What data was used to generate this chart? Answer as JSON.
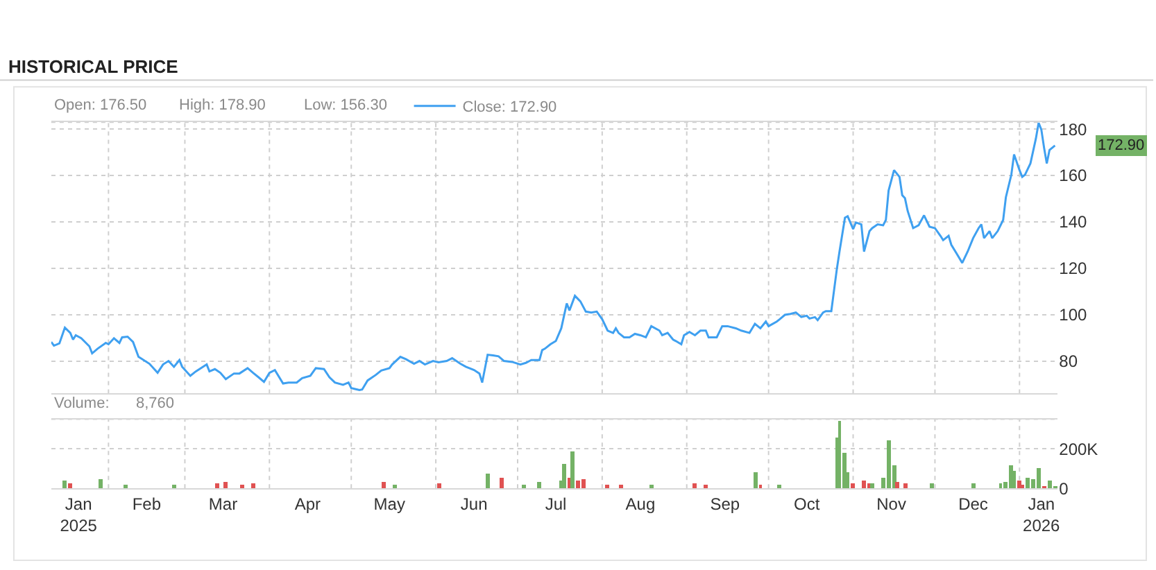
{
  "chart_data": [
    {
      "type": "line",
      "title": "HISTORICAL PRICE",
      "annotations": [
        "Open: 176.50",
        "High: 178.90",
        "Low: 156.30",
        "172.90"
      ],
      "x": [
        "2025-01-11",
        "2025-01-12",
        "2025-01-14",
        "2025-01-16",
        "2025-01-18",
        "2025-01-19",
        "2025-01-20",
        "2025-01-22",
        "2025-01-25",
        "2025-01-26",
        "2025-01-28",
        "2025-01-31",
        "2025-02-01",
        "2025-02-03",
        "2025-02-05",
        "2025-02-06",
        "2025-02-08",
        "2025-02-10",
        "2025-02-12",
        "2025-02-16",
        "2025-02-19",
        "2025-02-21",
        "2025-02-23",
        "2025-02-25",
        "2025-02-27",
        "2025-02-28",
        "2025-03-03",
        "2025-03-05",
        "2025-03-09",
        "2025-03-10",
        "2025-03-12",
        "2025-03-14",
        "2025-03-16",
        "2025-03-19",
        "2025-03-21",
        "2025-03-24",
        "2025-03-26",
        "2025-03-28",
        "2025-03-30",
        "2025-04-01",
        "2025-04-03",
        "2025-04-06",
        "2025-04-08",
        "2025-04-11",
        "2025-04-13",
        "2025-04-16",
        "2025-04-18",
        "2025-04-21",
        "2025-04-23",
        "2025-04-25",
        "2025-04-28",
        "2025-04-30",
        "2025-05-01",
        "2025-05-04",
        "2025-05-05",
        "2025-05-07",
        "2025-05-10",
        "2025-05-12",
        "2025-05-15",
        "2025-05-16",
        "2025-05-19",
        "2025-05-21",
        "2025-05-24",
        "2025-05-26",
        "2025-05-28",
        "2025-05-31",
        "2025-06-02",
        "2025-06-05",
        "2025-06-07",
        "2025-06-10",
        "2025-06-12",
        "2025-06-15",
        "2025-06-17",
        "2025-06-18",
        "2025-06-20",
        "2025-06-22",
        "2025-06-24",
        "2025-06-26",
        "2025-06-29",
        "2025-07-02",
        "2025-07-04",
        "2025-07-06",
        "2025-07-09",
        "2025-07-10",
        "2025-07-11",
        "2025-07-13",
        "2025-07-15",
        "2025-07-17",
        "2025-07-19",
        "2025-07-20",
        "2025-07-22",
        "2025-07-24",
        "2025-07-26",
        "2025-07-28",
        "2025-07-30",
        "2025-08-01",
        "2025-08-03",
        "2025-08-05",
        "2025-08-06",
        "2025-08-07",
        "2025-08-09",
        "2025-08-11",
        "2025-08-13",
        "2025-08-15",
        "2025-08-17",
        "2025-08-19",
        "2025-08-22",
        "2025-08-23",
        "2025-08-25",
        "2025-08-27",
        "2025-08-28",
        "2025-08-30",
        "2025-08-31",
        "2025-09-02",
        "2025-09-04",
        "2025-09-06",
        "2025-09-08",
        "2025-09-09",
        "2025-09-12",
        "2025-09-14",
        "2025-09-16",
        "2025-09-19",
        "2025-09-21",
        "2025-09-24",
        "2025-09-26",
        "2025-09-28",
        "2025-09-30",
        "2025-10-01",
        "2025-10-04",
        "2025-10-05",
        "2025-10-07",
        "2025-10-09",
        "2025-10-11",
        "2025-10-13",
        "2025-10-15",
        "2025-10-16",
        "2025-10-18",
        "2025-10-19",
        "2025-10-21",
        "2025-10-22",
        "2025-10-24",
        "2025-10-26",
        "2025-10-27",
        "2025-10-29",
        "2025-10-30",
        "2025-11-01",
        "2025-11-02",
        "2025-11-04",
        "2025-11-05",
        "2025-11-07",
        "2025-11-08",
        "2025-11-10",
        "2025-11-12",
        "2025-11-13",
        "2025-11-14",
        "2025-11-16",
        "2025-11-18",
        "2025-11-19",
        "2025-11-20",
        "2025-11-21",
        "2025-11-23",
        "2025-11-25",
        "2025-11-27",
        "2025-11-29",
        "2025-12-01",
        "2025-12-03",
        "2025-12-04",
        "2025-12-06",
        "2025-12-07",
        "2025-12-09",
        "2025-12-11",
        "2025-12-13",
        "2025-12-15",
        "2025-12-17",
        "2025-12-18",
        "2025-12-19",
        "2025-12-21",
        "2025-12-22",
        "2025-12-24",
        "2025-12-26",
        "2025-12-27",
        "2025-12-29",
        "2025-12-30",
        "2026-01-01",
        "2026-01-02",
        "2026-01-03",
        "2026-01-05",
        "2026-01-07",
        "2026-01-08",
        "2026-01-09",
        "2026-01-10",
        "2026-01-11",
        "2026-01-12",
        "2026-01-14"
      ],
      "series": [
        {
          "name": "Close: 172.90",
          "color": "#3fa0f0",
          "values": [
            88.2,
            86.6,
            87.6,
            94.4,
            92.1,
            89.2,
            91.1,
            89.8,
            86.3,
            83.3,
            85.3,
            87.8,
            87.2,
            89.8,
            87.8,
            90.2,
            90.5,
            88.2,
            81.8,
            78.8,
            74.9,
            78.5,
            80.0,
            77.5,
            80.4,
            77.5,
            73.6,
            75.5,
            78.5,
            75.5,
            76.5,
            74.9,
            72.2,
            74.6,
            74.6,
            76.9,
            74.9,
            73.0,
            71.0,
            74.9,
            76.1,
            70.3,
            70.7,
            70.7,
            72.6,
            73.6,
            76.9,
            76.5,
            73.0,
            70.7,
            69.7,
            70.7,
            68.3,
            67.5,
            67.7,
            71.6,
            74.0,
            75.9,
            76.9,
            78.5,
            81.8,
            80.8,
            78.8,
            80.0,
            78.5,
            80.0,
            79.4,
            80.0,
            81.2,
            78.8,
            77.5,
            76.1,
            74.6,
            70.7,
            82.7,
            82.4,
            82.0,
            80.0,
            79.6,
            78.5,
            79.2,
            80.4,
            80.4,
            84.7,
            85.3,
            87.2,
            88.6,
            94.1,
            104.8,
            101.8,
            108.1,
            105.7,
            101.3,
            100.9,
            101.3,
            98.0,
            93.1,
            92.1,
            94.1,
            92.1,
            90.2,
            90.2,
            91.7,
            91.1,
            90.2,
            95.0,
            93.1,
            91.1,
            92.1,
            89.2,
            88.6,
            87.2,
            91.1,
            92.5,
            91.1,
            93.1,
            93.1,
            90.2,
            90.2,
            95.0,
            95.0,
            94.1,
            93.1,
            92.1,
            96.0,
            94.1,
            97.0,
            95.0,
            97.0,
            97.9,
            99.9,
            100.3,
            100.9,
            99.0,
            99.5,
            98.3,
            98.9,
            97.6,
            100.9,
            101.5,
            101.5,
            119.4,
            127.2,
            141.8,
            142.4,
            136.9,
            139.7,
            138.9,
            127.2,
            136.0,
            137.3,
            138.9,
            138.5,
            140.8,
            153.5,
            162.3,
            159.4,
            151.5,
            150.2,
            144.7,
            137.3,
            138.5,
            142.8,
            137.9,
            137.3,
            134.0,
            132.1,
            134.0,
            130.1,
            126.2,
            122.3,
            127.2,
            133.0,
            137.3,
            138.9,
            133.0,
            136.0,
            133.0,
            136.0,
            140.8,
            150.6,
            160.3,
            169.1,
            162.3,
            159.4,
            160.3,
            165.2,
            175.9,
            182.7,
            179.8,
            172.0,
            165.2,
            171.0,
            172.9
          ]
        }
      ],
      "xlim": [
        "2025-01-11",
        "2026-01-15"
      ],
      "xticks": [
        {
          "value": "2025-02-01",
          "label": null
        },
        {
          "value": "2025-03-01",
          "label": null
        },
        {
          "value": "2025-04-01",
          "label": null
        },
        {
          "value": "2025-05-01",
          "label": null
        },
        {
          "value": "2025-06-01",
          "label": null
        },
        {
          "value": "2025-07-01",
          "label": null
        },
        {
          "value": "2025-08-01",
          "label": null
        },
        {
          "value": "2025-09-01",
          "label": null
        },
        {
          "value": "2025-10-01",
          "label": null
        },
        {
          "value": "2025-11-01",
          "label": null
        },
        {
          "value": "2025-12-01",
          "label": null
        },
        {
          "value": "2026-01-01",
          "label": null
        }
      ],
      "ylim": [
        66,
        183
      ],
      "yticks": [
        80,
        100,
        120,
        140,
        160,
        180
      ],
      "grid": true,
      "legend": "top left",
      "tick_labels": "y"
    },
    {
      "type": "bar",
      "annotations": [
        "Volume:",
        "8,760"
      ],
      "x": [
        "2025-01-16",
        "2025-01-18",
        "2025-01-29",
        "2025-02-07",
        "2025-02-25",
        "2025-03-13",
        "2025-03-16",
        "2025-03-22",
        "2025-03-26",
        "2025-05-13",
        "2025-05-17",
        "2025-06-02",
        "2025-06-20",
        "2025-06-25",
        "2025-07-03",
        "2025-07-09",
        "2025-07-17",
        "2025-07-18",
        "2025-07-20",
        "2025-07-21",
        "2025-07-23",
        "2025-07-25",
        "2025-08-03",
        "2025-08-08",
        "2025-08-19",
        "2025-09-04",
        "2025-09-08",
        "2025-09-26",
        "2025-09-28",
        "2025-10-05",
        "2025-10-26",
        "2025-10-27",
        "2025-10-29",
        "2025-10-30",
        "2025-11-01",
        "2025-11-05",
        "2025-11-07",
        "2025-11-08",
        "2025-11-12",
        "2025-11-14",
        "2025-11-16",
        "2025-11-17",
        "2025-11-20",
        "2025-11-30",
        "2025-12-15",
        "2025-12-25",
        "2025-12-27",
        "2025-12-29",
        "2025-12-30",
        "2026-01-01",
        "2026-01-02",
        "2026-01-04",
        "2026-01-06",
        "2026-01-08",
        "2026-01-10",
        "2026-01-12",
        "2026-01-14"
      ],
      "values": [
        39000,
        25000,
        46000,
        18000,
        18000,
        25000,
        32000,
        18000,
        25000,
        32000,
        18000,
        25000,
        74000,
        53000,
        18000,
        32000,
        39000,
        129000,
        58000,
        191000,
        41000,
        46000,
        18000,
        18000,
        18000,
        25000,
        18000,
        80000,
        18000,
        18000,
        260000,
        345000,
        184000,
        80000,
        25000,
        39000,
        30000,
        25000,
        53000,
        246000,
        115000,
        35000,
        28000,
        25000,
        25000,
        30000,
        35000,
        115000,
        87000,
        39000,
        18000,
        53000,
        46000,
        103000,
        14000,
        39000,
        9000
      ],
      "colors": [
        "#74b266",
        "#e05252",
        "#74b266",
        "#74b266",
        "#74b266",
        "#e05252",
        "#e05252",
        "#e05252",
        "#e05252",
        "#e05252",
        "#74b266",
        "#e05252",
        "#74b266",
        "#e05252",
        "#74b266",
        "#74b266",
        "#74b266",
        "#74b266",
        "#e05252",
        "#74b266",
        "#e05252",
        "#e05252",
        "#e05252",
        "#e05252",
        "#74b266",
        "#e05252",
        "#e05252",
        "#74b266",
        "#e05252",
        "#74b266",
        "#74b266",
        "#74b266",
        "#74b266",
        "#74b266",
        "#e05252",
        "#e05252",
        "#e05252",
        "#74b266",
        "#74b266",
        "#74b266",
        "#74b266",
        "#e05252",
        "#e05252",
        "#74b266",
        "#74b266",
        "#74b266",
        "#74b266",
        "#74b266",
        "#74b266",
        "#e05252",
        "#e05252",
        "#74b266",
        "#74b266",
        "#74b266",
        "#e05252",
        "#74b266",
        "#74b266"
      ],
      "xlim": [
        "2025-01-11",
        "2026-01-15"
      ],
      "xticks": [
        {
          "value": "2025-01-21",
          "label": "Jan\n2025"
        },
        {
          "value": "2025-02-15",
          "label": "Feb"
        },
        {
          "value": "2025-03-15",
          "label": "Mar"
        },
        {
          "value": "2025-04-15",
          "label": "Apr"
        },
        {
          "value": "2025-05-15",
          "label": "May"
        },
        {
          "value": "2025-06-15",
          "label": "Jun"
        },
        {
          "value": "2025-07-15",
          "label": "Jul"
        },
        {
          "value": "2025-08-15",
          "label": "Aug"
        },
        {
          "value": "2025-09-15",
          "label": "Sep"
        },
        {
          "value": "2025-10-15",
          "label": "Oct"
        },
        {
          "value": "2025-11-15",
          "label": "Nov"
        },
        {
          "value": "2025-12-15",
          "label": "Dec"
        },
        {
          "value": "2026-01-09",
          "label": "Jan\n2026"
        },
        {
          "value": "2025-02-01",
          "label": null
        },
        {
          "value": "2025-03-01",
          "label": null
        },
        {
          "value": "2025-04-01",
          "label": null
        },
        {
          "value": "2025-05-01",
          "label": null
        },
        {
          "value": "2025-06-01",
          "label": null
        },
        {
          "value": "2025-07-01",
          "label": null
        },
        {
          "value": "2025-08-01",
          "label": null
        },
        {
          "value": "2025-09-01",
          "label": null
        },
        {
          "value": "2025-10-01",
          "label": null
        },
        {
          "value": "2025-11-01",
          "label": null
        },
        {
          "value": "2025-12-01",
          "label": null
        },
        {
          "value": "2026-01-01",
          "label": null
        }
      ],
      "ylim": [
        0,
        350000
      ],
      "yticks": [
        0,
        {
          "value": 200000,
          "label": "200K"
        }
      ],
      "grid": true
    }
  ]
}
